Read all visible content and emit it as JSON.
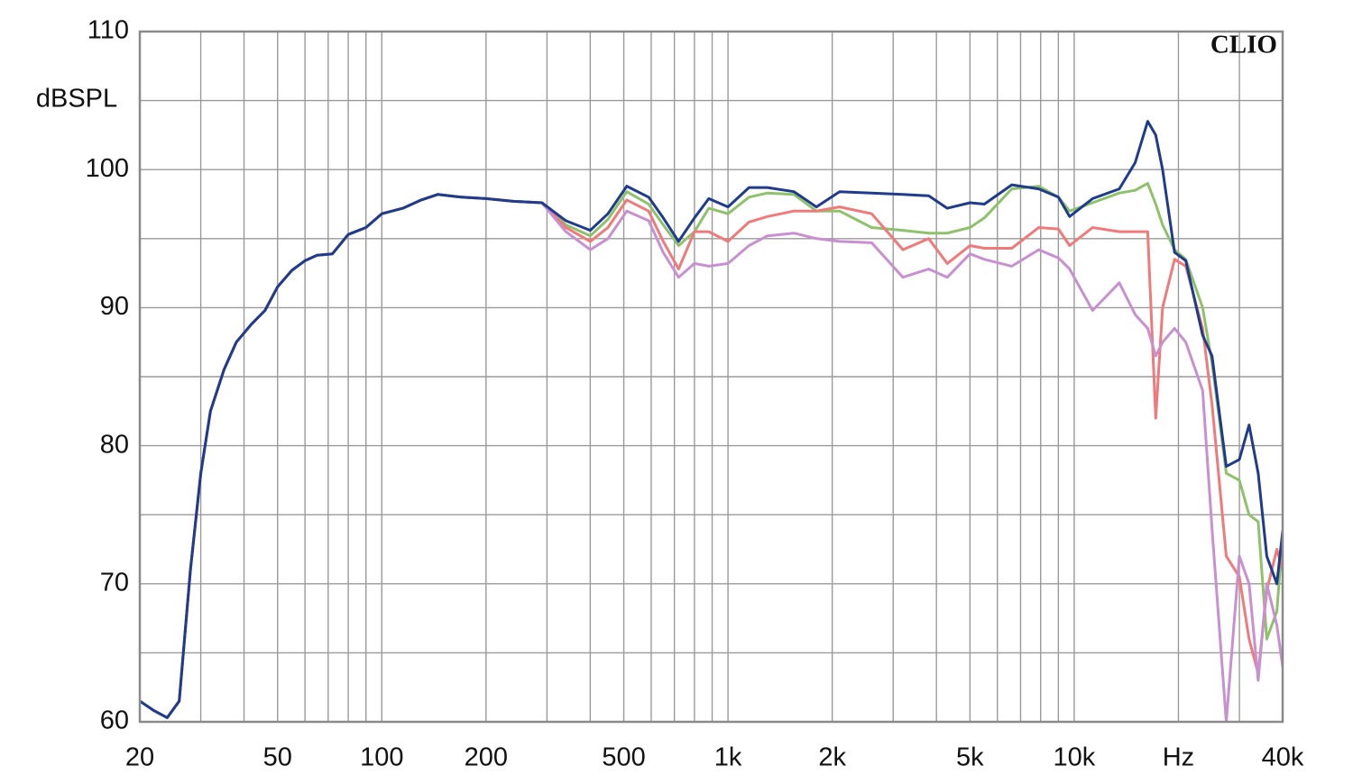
{
  "chart_data": {
    "type": "line",
    "ylabel": "dBSPL",
    "annotation": "CLIO",
    "xscale": "log",
    "grid": true,
    "x": [
      20,
      22,
      24,
      26,
      28,
      30,
      32,
      35,
      38,
      42,
      46,
      50,
      55,
      60,
      65,
      72,
      80,
      90,
      100,
      115,
      130,
      145,
      170,
      200,
      240,
      290,
      340,
      400,
      450,
      510,
      590,
      650,
      720,
      800,
      880,
      1000,
      1150,
      1300,
      1550,
      1800,
      2100,
      2600,
      3200,
      3800,
      4300,
      5000,
      5500,
      6600,
      7900,
      9000,
      9700,
      11300,
      13500,
      15000,
      16300,
      17200,
      18000,
      19500,
      21000,
      23500,
      25000,
      27500,
      30000,
      32000,
      34000,
      36000,
      38500,
      40000
    ],
    "series": [
      {
        "color": "#8dc26a",
        "values": [
          61.5,
          60.8,
          60.3,
          61.5,
          71,
          78,
          82.5,
          85.5,
          87.5,
          88.8,
          89.8,
          91.5,
          92.7,
          93.4,
          93.8,
          93.9,
          95.3,
          95.8,
          96.8,
          97.2,
          97.8,
          98.2,
          98.0,
          97.9,
          97.7,
          97.6,
          96.0,
          95.2,
          96.4,
          98.4,
          97.5,
          96.0,
          94.5,
          95.5,
          97.2,
          96.8,
          98.0,
          98.3,
          98.2,
          97.0,
          97.0,
          95.8,
          95.6,
          95.4,
          95.4,
          95.8,
          96.5,
          98.6,
          98.8,
          98.0,
          97.0,
          97.6,
          98.3,
          98.5,
          99.0,
          97.5,
          96.0,
          94.2,
          93.5,
          90.0,
          86.0,
          78.0,
          77.5,
          75.0,
          74.5,
          66.0,
          68.0,
          73.5
        ]
      },
      {
        "color": "#f07a7a",
        "values": [
          61.5,
          60.8,
          60.3,
          61.5,
          71,
          78,
          82.5,
          85.5,
          87.5,
          88.8,
          89.8,
          91.5,
          92.7,
          93.4,
          93.8,
          93.9,
          95.3,
          95.8,
          96.8,
          97.2,
          97.8,
          98.2,
          98.0,
          97.9,
          97.7,
          97.6,
          95.8,
          94.8,
          95.8,
          97.8,
          97.0,
          94.8,
          92.8,
          95.5,
          95.5,
          94.8,
          96.2,
          96.6,
          97.0,
          97.0,
          97.3,
          96.8,
          94.2,
          95.0,
          93.2,
          94.5,
          94.3,
          94.3,
          95.8,
          95.7,
          94.5,
          95.8,
          95.5,
          95.5,
          95.5,
          82.0,
          90.0,
          93.5,
          93.0,
          88.5,
          83.0,
          72.0,
          70.5,
          66.0,
          63.5,
          69.5,
          72.5,
          71.0
        ]
      },
      {
        "color": "#c890d0",
        "values": [
          61.5,
          60.8,
          60.3,
          61.5,
          71,
          78,
          82.5,
          85.5,
          87.5,
          88.8,
          89.8,
          91.5,
          92.7,
          93.4,
          93.8,
          93.9,
          95.3,
          95.8,
          96.8,
          97.2,
          97.8,
          98.2,
          98.0,
          97.9,
          97.7,
          97.6,
          95.5,
          94.2,
          95.0,
          97.0,
          96.3,
          94.0,
          92.2,
          93.2,
          93.0,
          93.2,
          94.5,
          95.2,
          95.4,
          95.0,
          94.8,
          94.7,
          92.2,
          92.8,
          92.2,
          93.9,
          93.5,
          93.0,
          94.2,
          93.6,
          92.8,
          89.8,
          91.8,
          89.5,
          88.5,
          86.5,
          87.5,
          88.5,
          87.5,
          84.0,
          74.0,
          60.0,
          72.0,
          70.0,
          63.0,
          70.0,
          67.0,
          64.0
        ]
      },
      {
        "color": "#1f3c8c",
        "values": [
          61.5,
          60.8,
          60.3,
          61.5,
          71,
          78,
          82.5,
          85.5,
          87.5,
          88.8,
          89.8,
          91.5,
          92.7,
          93.4,
          93.8,
          93.9,
          95.3,
          95.8,
          96.8,
          97.2,
          97.8,
          98.2,
          98.0,
          97.9,
          97.7,
          97.6,
          96.3,
          95.6,
          96.8,
          98.8,
          98.0,
          96.5,
          94.8,
          96.5,
          97.9,
          97.3,
          98.7,
          98.7,
          98.4,
          97.3,
          98.4,
          98.3,
          98.2,
          98.1,
          97.2,
          97.6,
          97.5,
          98.9,
          98.6,
          98.0,
          96.6,
          97.9,
          98.6,
          100.5,
          103.5,
          102.5,
          100.0,
          94.0,
          93.4,
          88.0,
          86.5,
          78.5,
          79.0,
          81.5,
          78.0,
          72.0,
          70.0,
          73.8
        ]
      }
    ],
    "xlim": [
      20,
      40000
    ],
    "xticks": [
      20,
      50,
      100,
      200,
      500,
      {
        "value": 1000,
        "label": "1k"
      },
      {
        "value": 2000,
        "label": "2k"
      },
      {
        "value": 5000,
        "label": "5k"
      },
      {
        "value": 10000,
        "label": "10k"
      },
      {
        "value": 20000,
        "label": "Hz"
      },
      {
        "value": 40000,
        "label": "40k"
      }
    ],
    "xminorticks": [
      30,
      40,
      60,
      70,
      80,
      90,
      300,
      400,
      600,
      700,
      800,
      900,
      3000,
      4000,
      6000,
      7000,
      8000,
      9000,
      30000
    ],
    "ylim": [
      60,
      110
    ],
    "yticks": [
      60,
      70,
      80,
      90,
      100,
      110
    ],
    "yminorticks": [
      65,
      75,
      85,
      95,
      105
    ]
  }
}
